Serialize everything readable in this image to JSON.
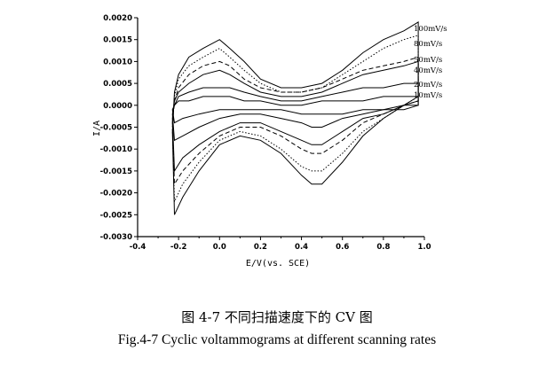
{
  "chart_data": {
    "type": "line",
    "title": "",
    "xlabel": "E/V(vs. SCE)",
    "ylabel": "I/A",
    "xlim": [
      -0.4,
      1.0
    ],
    "ylim": [
      -0.003,
      0.002
    ],
    "xticks": [
      "-0.4",
      "-0.2",
      "0.0",
      "0.2",
      "0.4",
      "0.6",
      "0.8",
      "1.0"
    ],
    "xtick_values": [
      -0.4,
      -0.2,
      0.0,
      0.2,
      0.4,
      0.6,
      0.8,
      1.0
    ],
    "yticks": [
      "0.0020",
      "0.0015",
      "0.0010",
      "0.0005",
      "0.0000",
      "-0.0005",
      "-0.0010",
      "-0.0015",
      "-0.0020",
      "-0.0025",
      "-0.0030"
    ],
    "ytick_values": [
      0.002,
      0.0015,
      0.001,
      0.0005,
      0.0,
      -0.0005,
      -0.001,
      -0.0015,
      -0.002,
      -0.0025,
      -0.003
    ],
    "grid": false,
    "legend": "right",
    "series": [
      {
        "name": "100mV/s",
        "style": "solid",
        "values": [
          [
            -0.23,
            -0.0006
          ],
          [
            -0.22,
            0.0003
          ],
          [
            -0.2,
            0.0007
          ],
          [
            -0.15,
            0.0011
          ],
          [
            -0.08,
            0.0013
          ],
          [
            0.0,
            0.0015
          ],
          [
            0.05,
            0.0013
          ],
          [
            0.12,
            0.001
          ],
          [
            0.2,
            0.0006
          ],
          [
            0.3,
            0.0004
          ],
          [
            0.4,
            0.0004
          ],
          [
            0.5,
            0.0005
          ],
          [
            0.6,
            0.0008
          ],
          [
            0.7,
            0.0012
          ],
          [
            0.8,
            0.0015
          ],
          [
            0.9,
            0.0017
          ],
          [
            0.97,
            0.0019
          ],
          [
            0.97,
            0.0002
          ],
          [
            0.9,
            0.0
          ],
          [
            0.8,
            -0.0003
          ],
          [
            0.7,
            -0.0007
          ],
          [
            0.6,
            -0.0013
          ],
          [
            0.5,
            -0.0018
          ],
          [
            0.45,
            -0.0018
          ],
          [
            0.4,
            -0.0016
          ],
          [
            0.3,
            -0.0011
          ],
          [
            0.2,
            -0.0008
          ],
          [
            0.1,
            -0.0007
          ],
          [
            0.0,
            -0.0009
          ],
          [
            -0.1,
            -0.0015
          ],
          [
            -0.18,
            -0.0021
          ],
          [
            -0.22,
            -0.0025
          ]
        ]
      },
      {
        "name": "80mV/s",
        "style": "dotted",
        "values": [
          [
            -0.23,
            -0.0005
          ],
          [
            -0.22,
            0.0002
          ],
          [
            -0.2,
            0.0006
          ],
          [
            -0.15,
            0.0009
          ],
          [
            -0.08,
            0.0011
          ],
          [
            0.0,
            0.0013
          ],
          [
            0.05,
            0.0011
          ],
          [
            0.12,
            0.0008
          ],
          [
            0.2,
            0.0005
          ],
          [
            0.3,
            0.0003
          ],
          [
            0.4,
            0.0003
          ],
          [
            0.5,
            0.0004
          ],
          [
            0.6,
            0.0007
          ],
          [
            0.7,
            0.001
          ],
          [
            0.8,
            0.0013
          ],
          [
            0.9,
            0.0015
          ],
          [
            0.97,
            0.0016
          ],
          [
            0.97,
            0.0002
          ],
          [
            0.9,
            0.0
          ],
          [
            0.8,
            -0.0003
          ],
          [
            0.7,
            -0.0006
          ],
          [
            0.6,
            -0.0011
          ],
          [
            0.5,
            -0.0015
          ],
          [
            0.45,
            -0.0015
          ],
          [
            0.4,
            -0.0014
          ],
          [
            0.3,
            -0.001
          ],
          [
            0.2,
            -0.0007
          ],
          [
            0.1,
            -0.0006
          ],
          [
            0.0,
            -0.0008
          ],
          [
            -0.1,
            -0.0013
          ],
          [
            -0.18,
            -0.0018
          ],
          [
            -0.22,
            -0.0022
          ]
        ]
      },
      {
        "name": "50mV/s",
        "style": "dashed",
        "values": [
          [
            -0.23,
            -0.0004
          ],
          [
            -0.22,
            0.0001
          ],
          [
            -0.2,
            0.0004
          ],
          [
            -0.15,
            0.0007
          ],
          [
            -0.08,
            0.0009
          ],
          [
            0.0,
            0.001
          ],
          [
            0.05,
            0.0009
          ],
          [
            0.12,
            0.0006
          ],
          [
            0.2,
            0.0004
          ],
          [
            0.3,
            0.0003
          ],
          [
            0.4,
            0.0003
          ],
          [
            0.5,
            0.0004
          ],
          [
            0.6,
            0.0006
          ],
          [
            0.7,
            0.0008
          ],
          [
            0.8,
            0.0009
          ],
          [
            0.9,
            0.001
          ],
          [
            0.97,
            0.0011
          ],
          [
            0.97,
            0.0001
          ],
          [
            0.9,
            0.0
          ],
          [
            0.8,
            -0.0002
          ],
          [
            0.7,
            -0.0004
          ],
          [
            0.6,
            -0.0008
          ],
          [
            0.5,
            -0.0011
          ],
          [
            0.45,
            -0.0011
          ],
          [
            0.4,
            -0.001
          ],
          [
            0.3,
            -0.0007
          ],
          [
            0.2,
            -0.0005
          ],
          [
            0.1,
            -0.0005
          ],
          [
            0.0,
            -0.0007
          ],
          [
            -0.1,
            -0.0011
          ],
          [
            -0.18,
            -0.0015
          ],
          [
            -0.22,
            -0.0018
          ]
        ]
      },
      {
        "name": "40mV/s",
        "style": "solid",
        "values": [
          [
            -0.23,
            -0.0003
          ],
          [
            -0.22,
            0.0001
          ],
          [
            -0.2,
            0.0003
          ],
          [
            -0.15,
            0.0005
          ],
          [
            -0.08,
            0.0007
          ],
          [
            0.0,
            0.0008
          ],
          [
            0.05,
            0.0007
          ],
          [
            0.12,
            0.0005
          ],
          [
            0.2,
            0.0003
          ],
          [
            0.3,
            0.0002
          ],
          [
            0.4,
            0.0002
          ],
          [
            0.5,
            0.0003
          ],
          [
            0.6,
            0.0005
          ],
          [
            0.7,
            0.0007
          ],
          [
            0.8,
            0.0008
          ],
          [
            0.9,
            0.0009
          ],
          [
            0.97,
            0.001
          ],
          [
            0.97,
            0.0001
          ],
          [
            0.9,
            0.0
          ],
          [
            0.8,
            -0.0002
          ],
          [
            0.7,
            -0.0003
          ],
          [
            0.6,
            -0.0006
          ],
          [
            0.5,
            -0.0009
          ],
          [
            0.45,
            -0.0009
          ],
          [
            0.4,
            -0.0008
          ],
          [
            0.3,
            -0.0006
          ],
          [
            0.2,
            -0.0004
          ],
          [
            0.1,
            -0.0004
          ],
          [
            0.0,
            -0.0006
          ],
          [
            -0.1,
            -0.0009
          ],
          [
            -0.18,
            -0.0012
          ],
          [
            -0.22,
            -0.0015
          ]
        ]
      },
      {
        "name": "20mV/s",
        "style": "solid",
        "values": [
          [
            -0.23,
            -0.0002
          ],
          [
            -0.22,
            0.0
          ],
          [
            -0.2,
            0.0002
          ],
          [
            -0.15,
            0.0003
          ],
          [
            -0.08,
            0.0004
          ],
          [
            0.0,
            0.0004
          ],
          [
            0.05,
            0.0004
          ],
          [
            0.12,
            0.0003
          ],
          [
            0.2,
            0.0002
          ],
          [
            0.3,
            0.0001
          ],
          [
            0.4,
            0.0001
          ],
          [
            0.5,
            0.0002
          ],
          [
            0.6,
            0.0003
          ],
          [
            0.7,
            0.0004
          ],
          [
            0.8,
            0.0004
          ],
          [
            0.9,
            0.0005
          ],
          [
            0.97,
            0.0005
          ],
          [
            0.97,
            0.0
          ],
          [
            0.9,
            0.0
          ],
          [
            0.8,
            -0.0001
          ],
          [
            0.7,
            -0.0002
          ],
          [
            0.6,
            -0.0003
          ],
          [
            0.5,
            -0.0005
          ],
          [
            0.45,
            -0.0005
          ],
          [
            0.4,
            -0.0004
          ],
          [
            0.3,
            -0.0003
          ],
          [
            0.2,
            -0.0002
          ],
          [
            0.1,
            -0.0002
          ],
          [
            0.0,
            -0.0003
          ],
          [
            -0.1,
            -0.0005
          ],
          [
            -0.18,
            -0.0007
          ],
          [
            -0.22,
            -0.0008
          ]
        ]
      },
      {
        "name": "10mV/s",
        "style": "solid",
        "values": [
          [
            -0.23,
            -0.0001
          ],
          [
            -0.22,
            0.0
          ],
          [
            -0.2,
            0.0001
          ],
          [
            -0.15,
            0.0001
          ],
          [
            -0.08,
            0.0002
          ],
          [
            0.0,
            0.0002
          ],
          [
            0.05,
            0.0002
          ],
          [
            0.12,
            0.0001
          ],
          [
            0.2,
            0.0001
          ],
          [
            0.3,
            0.0
          ],
          [
            0.4,
            0.0
          ],
          [
            0.5,
            0.0001
          ],
          [
            0.6,
            0.0001
          ],
          [
            0.7,
            0.0001
          ],
          [
            0.8,
            0.0002
          ],
          [
            0.9,
            0.0002
          ],
          [
            0.97,
            0.0002
          ],
          [
            0.97,
            0.0
          ],
          [
            0.9,
            -0.0001
          ],
          [
            0.8,
            -0.0001
          ],
          [
            0.7,
            -0.0001
          ],
          [
            0.6,
            -0.0002
          ],
          [
            0.5,
            -0.0002
          ],
          [
            0.45,
            -0.0002
          ],
          [
            0.4,
            -0.0002
          ],
          [
            0.3,
            -0.0001
          ],
          [
            0.2,
            -0.0001
          ],
          [
            0.1,
            -0.0001
          ],
          [
            0.0,
            -0.0001
          ],
          [
            -0.1,
            -0.0002
          ],
          [
            -0.18,
            -0.0003
          ],
          [
            -0.22,
            -0.0004
          ]
        ]
      }
    ]
  },
  "caption": {
    "chinese": "图 4-7  不同扫描速度下的 CV 图",
    "english": "Fig.4-7 Cyclic voltammograms at different scanning rates"
  }
}
